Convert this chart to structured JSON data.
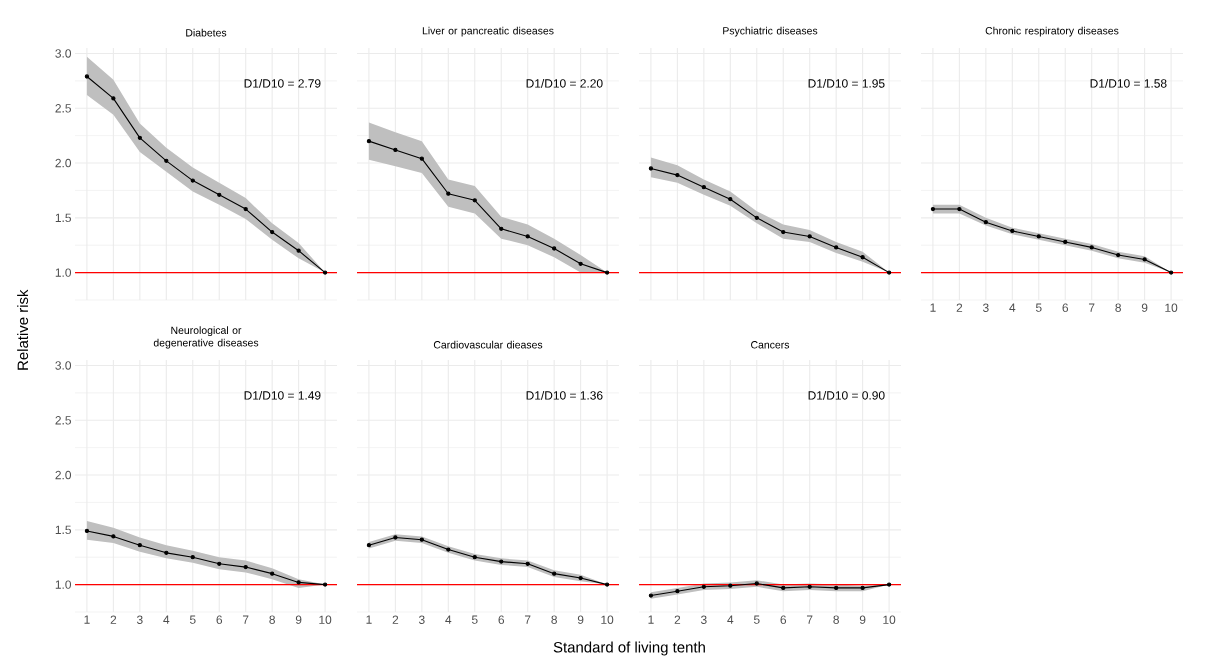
{
  "chart_data": [
    {
      "type": "line",
      "title": "Diabetes",
      "ylabel": "Relative risk",
      "x": [
        1,
        2,
        3,
        4,
        5,
        6,
        7,
        8,
        9,
        10
      ],
      "xlim": [
        0.55,
        10.45
      ],
      "ylim": [
        0.75,
        3.05
      ],
      "xticks": [
        {
          "value": 1,
          "label": null
        },
        {
          "value": 2,
          "label": null
        },
        {
          "value": 3,
          "label": null
        },
        {
          "value": 4,
          "label": null
        },
        {
          "value": 5,
          "label": null
        },
        {
          "value": 6,
          "label": null
        },
        {
          "value": 7,
          "label": null
        },
        {
          "value": 8,
          "label": null
        },
        {
          "value": 9,
          "label": null
        },
        {
          "value": 10,
          "label": null
        }
      ],
      "yticks": [
        {
          "value": 1,
          "label": "1.0"
        },
        {
          "value": 1.5,
          "label": "1.5"
        },
        {
          "value": 2,
          "label": "2.0"
        },
        {
          "value": 2.5,
          "label": "2.5"
        },
        {
          "value": 3,
          "label": "3.0"
        }
      ],
      "grid": true,
      "marker": "circle",
      "tick_labels": "y",
      "annotations": [
        "D1/D10 = 2.79"
      ],
      "series": [
        {
          "color": "#000000",
          "values": [
            2.79,
            2.59,
            2.23,
            2.02,
            1.84,
            1.71,
            1.58,
            1.37,
            1.2,
            1.0
          ],
          "lower": [
            2.62,
            2.44,
            2.1,
            1.92,
            1.74,
            1.62,
            1.49,
            1.3,
            1.13,
            1.0
          ],
          "upper": [
            2.97,
            2.76,
            2.36,
            2.14,
            1.96,
            1.82,
            1.68,
            1.45,
            1.27,
            1.0
          ]
        }
      ],
      "ref_lines": [
        {
          "axis": "y",
          "value": 1,
          "color": "#ff0000"
        }
      ]
    },
    {
      "type": "line",
      "title": "Liver or pancreatic diseases",
      "x": [
        1,
        2,
        3,
        4,
        5,
        6,
        7,
        8,
        9,
        10
      ],
      "xlim": [
        0.55,
        10.45
      ],
      "ylim": [
        0.75,
        3.05
      ],
      "xticks": [
        {
          "value": 1,
          "label": null
        },
        {
          "value": 2,
          "label": null
        },
        {
          "value": 3,
          "label": null
        },
        {
          "value": 4,
          "label": null
        },
        {
          "value": 5,
          "label": null
        },
        {
          "value": 6,
          "label": null
        },
        {
          "value": 7,
          "label": null
        },
        {
          "value": 8,
          "label": null
        },
        {
          "value": 9,
          "label": null
        },
        {
          "value": 10,
          "label": null
        }
      ],
      "yticks": [
        {
          "value": 1,
          "label": null
        },
        {
          "value": 1.5,
          "label": null
        },
        {
          "value": 2,
          "label": null
        },
        {
          "value": 2.5,
          "label": null
        },
        {
          "value": 3,
          "label": null
        }
      ],
      "grid": true,
      "marker": "circle",
      "tick_labels": false,
      "annotations": [
        "D1/D10 = 2.20"
      ],
      "series": [
        {
          "color": "#000000",
          "values": [
            2.2,
            2.12,
            2.04,
            1.72,
            1.66,
            1.4,
            1.33,
            1.22,
            1.08,
            1.0
          ],
          "lower": [
            2.03,
            1.97,
            1.91,
            1.6,
            1.54,
            1.31,
            1.25,
            1.14,
            1.0,
            1.0
          ],
          "upper": [
            2.37,
            2.28,
            2.2,
            1.85,
            1.79,
            1.51,
            1.44,
            1.31,
            1.16,
            1.0
          ]
        }
      ],
      "ref_lines": [
        {
          "axis": "y",
          "value": 1,
          "color": "#ff0000"
        }
      ]
    },
    {
      "type": "line",
      "title": "Psychiatric diseases",
      "x": [
        1,
        2,
        3,
        4,
        5,
        6,
        7,
        8,
        9,
        10
      ],
      "xlim": [
        0.55,
        10.45
      ],
      "ylim": [
        0.75,
        3.05
      ],
      "xticks": [
        {
          "value": 1,
          "label": null
        },
        {
          "value": 2,
          "label": null
        },
        {
          "value": 3,
          "label": null
        },
        {
          "value": 4,
          "label": null
        },
        {
          "value": 5,
          "label": null
        },
        {
          "value": 6,
          "label": null
        },
        {
          "value": 7,
          "label": null
        },
        {
          "value": 8,
          "label": null
        },
        {
          "value": 9,
          "label": null
        },
        {
          "value": 10,
          "label": null
        }
      ],
      "yticks": [
        {
          "value": 1,
          "label": null
        },
        {
          "value": 1.5,
          "label": null
        },
        {
          "value": 2,
          "label": null
        },
        {
          "value": 2.5,
          "label": null
        },
        {
          "value": 3,
          "label": null
        }
      ],
      "grid": true,
      "marker": "circle",
      "tick_labels": false,
      "annotations": [
        "D1/D10 = 1.95"
      ],
      "series": [
        {
          "color": "#000000",
          "values": [
            1.95,
            1.89,
            1.78,
            1.67,
            1.5,
            1.37,
            1.33,
            1.23,
            1.14,
            1.0
          ],
          "lower": [
            1.87,
            1.82,
            1.71,
            1.61,
            1.45,
            1.31,
            1.28,
            1.18,
            1.1,
            1.0
          ],
          "upper": [
            2.05,
            1.98,
            1.85,
            1.74,
            1.56,
            1.44,
            1.39,
            1.28,
            1.19,
            1.0
          ]
        }
      ],
      "ref_lines": [
        {
          "axis": "y",
          "value": 1,
          "color": "#ff0000"
        }
      ]
    },
    {
      "type": "line",
      "title": "Chronic respiratory diseases",
      "x": [
        1,
        2,
        3,
        4,
        5,
        6,
        7,
        8,
        9,
        10
      ],
      "xlim": [
        0.55,
        10.45
      ],
      "ylim": [
        0.75,
        3.05
      ],
      "xticks": [
        1,
        2,
        3,
        4,
        5,
        6,
        7,
        8,
        9,
        10
      ],
      "yticks": [
        {
          "value": 1,
          "label": null
        },
        {
          "value": 1.5,
          "label": null
        },
        {
          "value": 2,
          "label": null
        },
        {
          "value": 2.5,
          "label": null
        },
        {
          "value": 3,
          "label": null
        }
      ],
      "grid": true,
      "marker": "circle",
      "tick_labels": "x",
      "annotations": [
        "D1/D10 = 1.58"
      ],
      "series": [
        {
          "color": "#000000",
          "values": [
            1.58,
            1.58,
            1.46,
            1.38,
            1.33,
            1.28,
            1.23,
            1.16,
            1.12,
            1.0
          ],
          "lower": [
            1.54,
            1.54,
            1.43,
            1.35,
            1.3,
            1.25,
            1.2,
            1.13,
            1.09,
            1.0
          ],
          "upper": [
            1.62,
            1.62,
            1.5,
            1.41,
            1.36,
            1.31,
            1.26,
            1.19,
            1.15,
            1.0
          ]
        }
      ],
      "ref_lines": [
        {
          "axis": "y",
          "value": 1,
          "color": "#ff0000"
        }
      ]
    },
    {
      "type": "line",
      "title": "Neurological or degenerative diseases",
      "x": [
        1,
        2,
        3,
        4,
        5,
        6,
        7,
        8,
        9,
        10
      ],
      "xlim": [
        0.55,
        10.45
      ],
      "ylim": [
        0.75,
        3.05
      ],
      "xticks": [
        1,
        2,
        3,
        4,
        5,
        6,
        7,
        8,
        9,
        10
      ],
      "yticks": [
        {
          "value": 1,
          "label": "1.0"
        },
        {
          "value": 1.5,
          "label": "1.5"
        },
        {
          "value": 2,
          "label": "2.0"
        },
        {
          "value": 2.5,
          "label": "2.5"
        },
        {
          "value": 3,
          "label": "3.0"
        }
      ],
      "grid": true,
      "marker": "circle",
      "annotations": [
        "D1/D10 = 1.49"
      ],
      "series": [
        {
          "color": "#000000",
          "values": [
            1.49,
            1.44,
            1.36,
            1.29,
            1.25,
            1.19,
            1.16,
            1.1,
            1.02,
            1.0
          ],
          "lower": [
            1.41,
            1.38,
            1.3,
            1.24,
            1.2,
            1.14,
            1.11,
            1.05,
            0.97,
            1.0
          ],
          "upper": [
            1.58,
            1.52,
            1.43,
            1.36,
            1.31,
            1.25,
            1.22,
            1.15,
            1.05,
            1.0
          ]
        }
      ],
      "ref_lines": [
        {
          "axis": "y",
          "value": 1,
          "color": "#ff0000"
        }
      ]
    },
    {
      "type": "line",
      "title": "Cardiovascular dieases",
      "xlabel": "Standard of living tenth",
      "x": [
        1,
        2,
        3,
        4,
        5,
        6,
        7,
        8,
        9,
        10
      ],
      "xlim": [
        0.55,
        10.45
      ],
      "ylim": [
        0.75,
        3.05
      ],
      "xticks": [
        1,
        2,
        3,
        4,
        5,
        6,
        7,
        8,
        9,
        10
      ],
      "yticks": [
        {
          "value": 1,
          "label": null
        },
        {
          "value": 1.5,
          "label": null
        },
        {
          "value": 2,
          "label": null
        },
        {
          "value": 2.5,
          "label": null
        },
        {
          "value": 3,
          "label": null
        }
      ],
      "grid": true,
      "marker": "circle",
      "tick_labels": "x",
      "annotations": [
        "D1/D10 = 1.36"
      ],
      "series": [
        {
          "color": "#000000",
          "values": [
            1.36,
            1.43,
            1.41,
            1.32,
            1.25,
            1.21,
            1.19,
            1.1,
            1.06,
            1.0
          ],
          "lower": [
            1.33,
            1.4,
            1.38,
            1.29,
            1.22,
            1.18,
            1.16,
            1.07,
            1.03,
            1.0
          ],
          "upper": [
            1.39,
            1.46,
            1.44,
            1.35,
            1.28,
            1.24,
            1.22,
            1.13,
            1.09,
            1.0
          ]
        }
      ],
      "ref_lines": [
        {
          "axis": "y",
          "value": 1,
          "color": "#ff0000"
        }
      ]
    },
    {
      "type": "line",
      "title": "Cancers",
      "x": [
        1,
        2,
        3,
        4,
        5,
        6,
        7,
        8,
        9,
        10
      ],
      "xlim": [
        0.55,
        10.45
      ],
      "ylim": [
        0.75,
        3.05
      ],
      "xticks": [
        1,
        2,
        3,
        4,
        5,
        6,
        7,
        8,
        9,
        10
      ],
      "yticks": [
        {
          "value": 1,
          "label": null
        },
        {
          "value": 1.5,
          "label": null
        },
        {
          "value": 2,
          "label": null
        },
        {
          "value": 2.5,
          "label": null
        },
        {
          "value": 3,
          "label": null
        }
      ],
      "grid": true,
      "marker": "circle",
      "tick_labels": "x",
      "annotations": [
        "D1/D10 = 0.90"
      ],
      "series": [
        {
          "color": "#000000",
          "values": [
            0.9,
            0.94,
            0.98,
            0.99,
            1.01,
            0.97,
            0.98,
            0.97,
            0.97,
            1.0
          ],
          "lower": [
            0.87,
            0.91,
            0.95,
            0.96,
            0.98,
            0.94,
            0.95,
            0.94,
            0.94,
            1.0
          ],
          "upper": [
            0.93,
            0.97,
            1.01,
            1.02,
            1.04,
            1.0,
            1.01,
            1.0,
            0.99,
            1.0
          ]
        }
      ],
      "ref_lines": [
        {
          "axis": "y",
          "value": 1,
          "color": "#ff0000"
        }
      ]
    }
  ]
}
